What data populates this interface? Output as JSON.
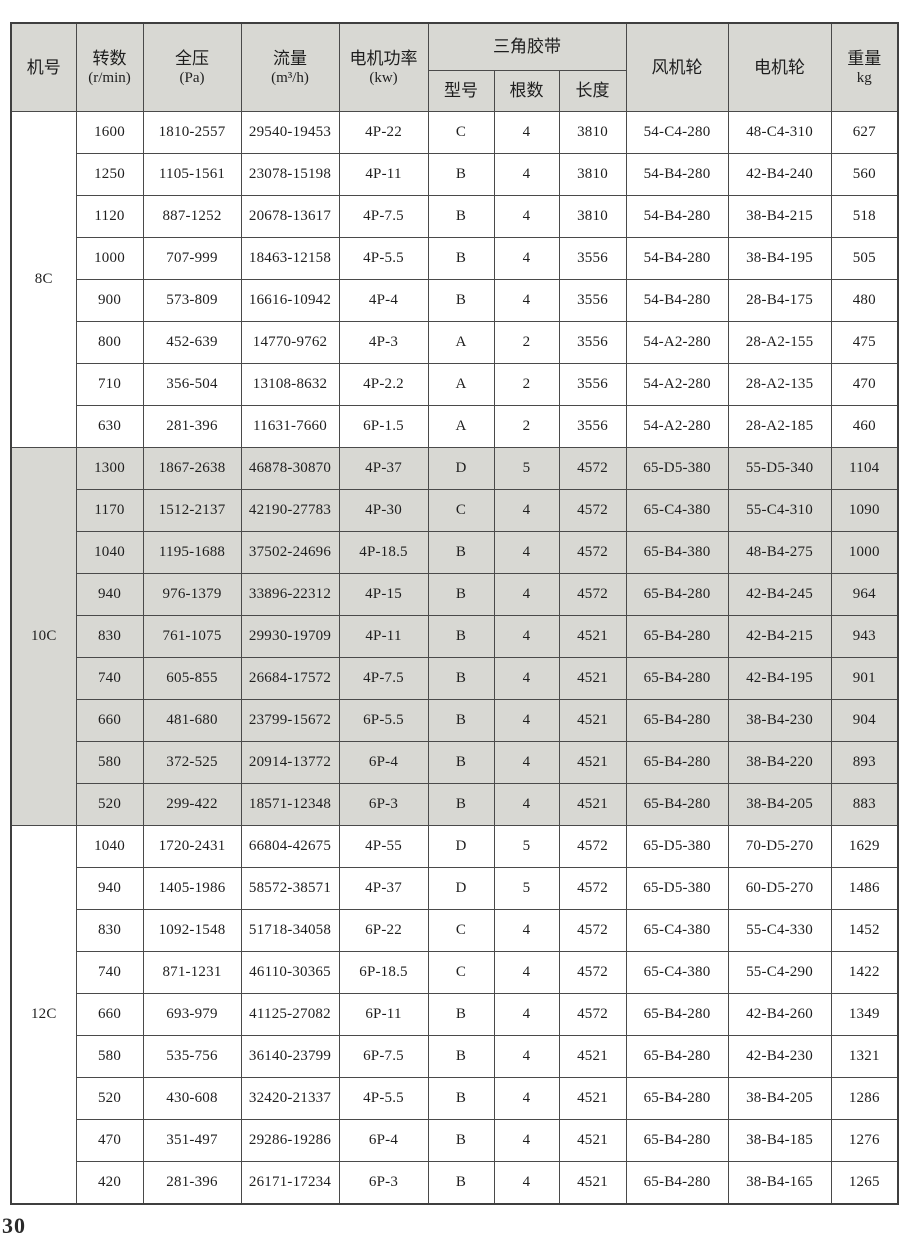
{
  "page": {
    "number_partial": "30"
  },
  "table": {
    "header": {
      "machine_no": "机号",
      "speed_line1": "转数",
      "speed_line2": "(r/min)",
      "pressure_line1": "全压",
      "pressure_line2": "(Pa)",
      "flow_line1": "流量",
      "flow_line2": "(m³/h)",
      "power_line1": "电机功率",
      "power_line2": "(kw)",
      "vbelt_group": "三角胶带",
      "vbelt_model": "型号",
      "vbelt_count": "根数",
      "vbelt_length": "长度",
      "fan_wheel": "风机轮",
      "motor_wheel": "电机轮",
      "weight_line1": "重量",
      "weight_line2": "kg"
    },
    "columns_order": [
      "speed",
      "pressure",
      "flow",
      "power",
      "belt_model",
      "belt_count",
      "belt_length",
      "fan_wheel",
      "motor_wheel",
      "weight"
    ],
    "groups": [
      {
        "machine_no": "8C",
        "shaded": false,
        "rows": [
          [
            "1600",
            "1810-2557",
            "29540-19453",
            "4P-22",
            "C",
            "4",
            "3810",
            "54-C4-280",
            "48-C4-310",
            "627"
          ],
          [
            "1250",
            "1105-1561",
            "23078-15198",
            "4P-11",
            "B",
            "4",
            "3810",
            "54-B4-280",
            "42-B4-240",
            "560"
          ],
          [
            "1120",
            "887-1252",
            "20678-13617",
            "4P-7.5",
            "B",
            "4",
            "3810",
            "54-B4-280",
            "38-B4-215",
            "518"
          ],
          [
            "1000",
            "707-999",
            "18463-12158",
            "4P-5.5",
            "B",
            "4",
            "3556",
            "54-B4-280",
            "38-B4-195",
            "505"
          ],
          [
            "900",
            "573-809",
            "16616-10942",
            "4P-4",
            "B",
            "4",
            "3556",
            "54-B4-280",
            "28-B4-175",
            "480"
          ],
          [
            "800",
            "452-639",
            "14770-9762",
            "4P-3",
            "A",
            "2",
            "3556",
            "54-A2-280",
            "28-A2-155",
            "475"
          ],
          [
            "710",
            "356-504",
            "13108-8632",
            "4P-2.2",
            "A",
            "2",
            "3556",
            "54-A2-280",
            "28-A2-135",
            "470"
          ],
          [
            "630",
            "281-396",
            "11631-7660",
            "6P-1.5",
            "A",
            "2",
            "3556",
            "54-A2-280",
            "28-A2-185",
            "460"
          ]
        ]
      },
      {
        "machine_no": "10C",
        "shaded": true,
        "rows": [
          [
            "1300",
            "1867-2638",
            "46878-30870",
            "4P-37",
            "D",
            "5",
            "4572",
            "65-D5-380",
            "55-D5-340",
            "1104"
          ],
          [
            "1170",
            "1512-2137",
            "42190-27783",
            "4P-30",
            "C",
            "4",
            "4572",
            "65-C4-380",
            "55-C4-310",
            "1090"
          ],
          [
            "1040",
            "1195-1688",
            "37502-24696",
            "4P-18.5",
            "B",
            "4",
            "4572",
            "65-B4-380",
            "48-B4-275",
            "1000"
          ],
          [
            "940",
            "976-1379",
            "33896-22312",
            "4P-15",
            "B",
            "4",
            "4572",
            "65-B4-280",
            "42-B4-245",
            "964"
          ],
          [
            "830",
            "761-1075",
            "29930-19709",
            "4P-11",
            "B",
            "4",
            "4521",
            "65-B4-280",
            "42-B4-215",
            "943"
          ],
          [
            "740",
            "605-855",
            "26684-17572",
            "4P-7.5",
            "B",
            "4",
            "4521",
            "65-B4-280",
            "42-B4-195",
            "901"
          ],
          [
            "660",
            "481-680",
            "23799-15672",
            "6P-5.5",
            "B",
            "4",
            "4521",
            "65-B4-280",
            "38-B4-230",
            "904"
          ],
          [
            "580",
            "372-525",
            "20914-13772",
            "6P-4",
            "B",
            "4",
            "4521",
            "65-B4-280",
            "38-B4-220",
            "893"
          ],
          [
            "520",
            "299-422",
            "18571-12348",
            "6P-3",
            "B",
            "4",
            "4521",
            "65-B4-280",
            "38-B4-205",
            "883"
          ]
        ]
      },
      {
        "machine_no": "12C",
        "shaded": false,
        "rows": [
          [
            "1040",
            "1720-2431",
            "66804-42675",
            "4P-55",
            "D",
            "5",
            "4572",
            "65-D5-380",
            "70-D5-270",
            "1629"
          ],
          [
            "940",
            "1405-1986",
            "58572-38571",
            "4P-37",
            "D",
            "5",
            "4572",
            "65-D5-380",
            "60-D5-270",
            "1486"
          ],
          [
            "830",
            "1092-1548",
            "51718-34058",
            "6P-22",
            "C",
            "4",
            "4572",
            "65-C4-380",
            "55-C4-330",
            "1452"
          ],
          [
            "740",
            "871-1231",
            "46110-30365",
            "6P-18.5",
            "C",
            "4",
            "4572",
            "65-C4-380",
            "55-C4-290",
            "1422"
          ],
          [
            "660",
            "693-979",
            "41125-27082",
            "6P-11",
            "B",
            "4",
            "4572",
            "65-B4-280",
            "42-B4-260",
            "1349"
          ],
          [
            "580",
            "535-756",
            "36140-23799",
            "6P-7.5",
            "B",
            "4",
            "4521",
            "65-B4-280",
            "42-B4-230",
            "1321"
          ],
          [
            "520",
            "430-608",
            "32420-21337",
            "4P-5.5",
            "B",
            "4",
            "4521",
            "65-B4-280",
            "38-B4-205",
            "1286"
          ],
          [
            "470",
            "351-497",
            "29286-19286",
            "6P-4",
            "B",
            "4",
            "4521",
            "65-B4-280",
            "38-B4-185",
            "1276"
          ],
          [
            "420",
            "281-396",
            "26171-17234",
            "6P-3",
            "B",
            "4",
            "4521",
            "65-B4-280",
            "38-B4-165",
            "1265"
          ]
        ]
      }
    ]
  },
  "colors": {
    "shaded_bg": "#d8d8d3",
    "border": "#4a4a4a",
    "text": "#1e1e1e"
  }
}
